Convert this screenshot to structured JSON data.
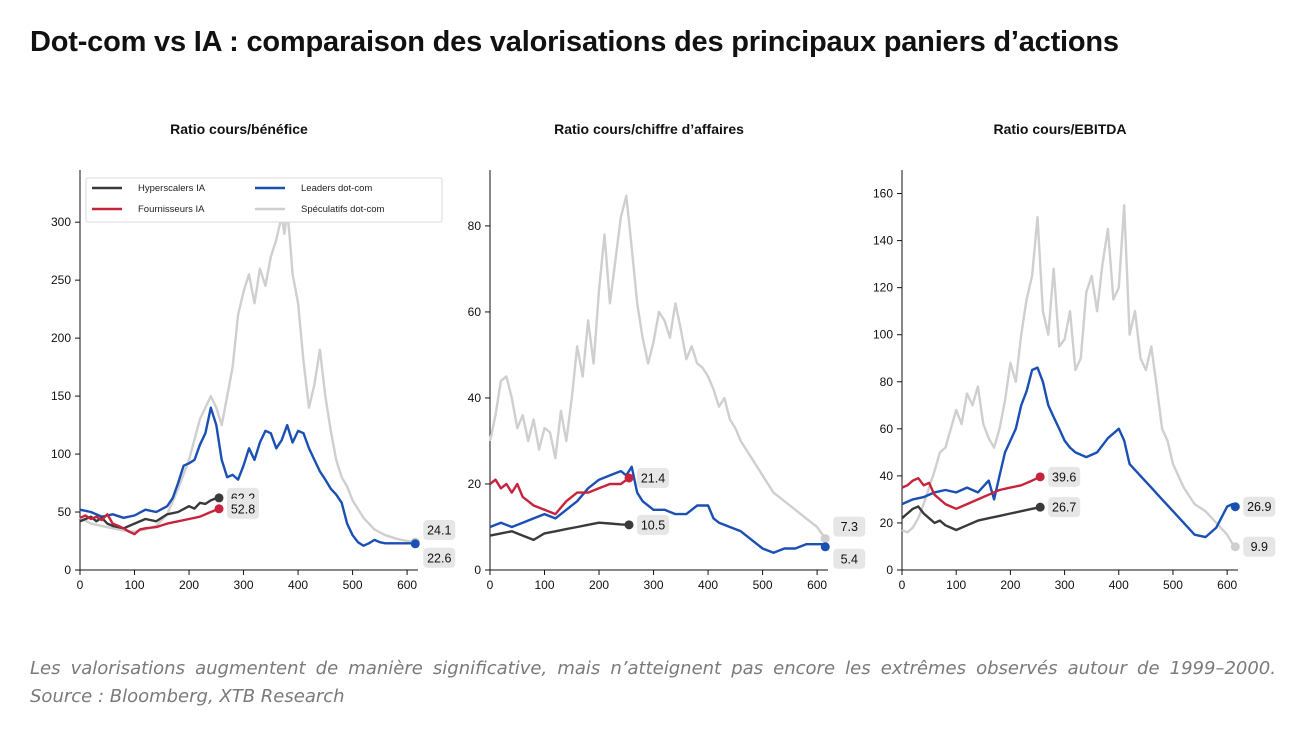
{
  "page": {
    "title": "Dot-com vs IA : comparaison des valorisations des principaux paniers d’actions",
    "caption": "Les valorisations augmentent de manière significative, mais n’atteignent pas encore les extrêmes observés autour de 1999–2000.",
    "source": "Source : Bloomberg, XTB Research"
  },
  "legend": [
    {
      "name": "Hyperscalers IA",
      "color": "#3a3a3c"
    },
    {
      "name": "Fournisseurs IA",
      "color": "#c8233c"
    },
    {
      "name": "Leaders dot-com",
      "color": "#1a4fb4"
    },
    {
      "name": "Spéculatifs dot-com",
      "color": "#cfcfcf"
    }
  ],
  "chart_data": [
    {
      "id": "pe",
      "type": "line",
      "title": "Ratio cours/bénéfice",
      "xlim": [
        0,
        620
      ],
      "ylim": [
        0,
        345
      ],
      "xticks": [
        0,
        100,
        200,
        300,
        400,
        500,
        600
      ],
      "yticks": [
        0,
        50,
        100,
        150,
        200,
        250,
        300
      ],
      "legend": true,
      "series": [
        {
          "name": "Spéculatifs dot-com",
          "color": "#cfcfcf",
          "x": [
            0,
            20,
            40,
            60,
            80,
            100,
            120,
            140,
            160,
            180,
            200,
            220,
            240,
            250,
            260,
            270,
            280,
            290,
            300,
            310,
            320,
            330,
            340,
            350,
            360,
            370,
            375,
            380,
            385,
            390,
            400,
            410,
            420,
            430,
            440,
            450,
            460,
            470,
            480,
            490,
            500,
            520,
            540,
            560,
            580,
            600,
            610,
            615
          ],
          "values": [
            45,
            40,
            38,
            36,
            34,
            33,
            35,
            38,
            48,
            70,
            95,
            130,
            150,
            140,
            125,
            150,
            175,
            220,
            240,
            255,
            230,
            260,
            245,
            270,
            285,
            305,
            290,
            310,
            285,
            255,
            230,
            180,
            140,
            160,
            190,
            150,
            120,
            95,
            80,
            72,
            60,
            45,
            35,
            30,
            27,
            25,
            24.5,
            24.1
          ],
          "end_label": "24.1"
        },
        {
          "name": "Leaders dot-com",
          "color": "#1a4fb4",
          "x": [
            0,
            20,
            40,
            60,
            80,
            100,
            120,
            140,
            160,
            170,
            180,
            190,
            200,
            210,
            220,
            230,
            240,
            250,
            260,
            270,
            280,
            290,
            300,
            310,
            320,
            330,
            340,
            350,
            360,
            370,
            380,
            390,
            400,
            410,
            420,
            430,
            440,
            450,
            460,
            470,
            480,
            490,
            500,
            510,
            520,
            530,
            540,
            550,
            560,
            580,
            600,
            610,
            615
          ],
          "values": [
            52,
            50,
            46,
            48,
            45,
            47,
            52,
            50,
            55,
            62,
            75,
            90,
            92,
            95,
            108,
            118,
            140,
            125,
            95,
            80,
            82,
            78,
            90,
            105,
            95,
            110,
            120,
            118,
            105,
            112,
            125,
            110,
            120,
            118,
            105,
            95,
            85,
            78,
            70,
            65,
            58,
            40,
            30,
            24,
            21,
            23,
            26,
            24,
            23,
            23,
            23,
            23,
            22.6
          ],
          "end_label": "22.6"
        },
        {
          "name": "Hyperscalers IA",
          "color": "#3a3a3c",
          "x": [
            0,
            10,
            20,
            30,
            40,
            50,
            60,
            80,
            100,
            120,
            140,
            160,
            180,
            200,
            210,
            220,
            230,
            240,
            250,
            255
          ],
          "values": [
            42,
            44,
            46,
            42,
            45,
            40,
            38,
            36,
            40,
            44,
            42,
            48,
            50,
            55,
            53,
            58,
            57,
            60,
            62,
            62.2
          ],
          "end_label": "62.2"
        },
        {
          "name": "Fournisseurs IA",
          "color": "#c8233c",
          "x": [
            0,
            10,
            20,
            30,
            40,
            50,
            60,
            70,
            80,
            90,
            100,
            110,
            120,
            140,
            160,
            180,
            200,
            220,
            240,
            255
          ],
          "values": [
            45,
            47,
            44,
            46,
            43,
            48,
            40,
            38,
            36,
            33,
            31,
            35,
            36,
            37,
            40,
            42,
            44,
            46,
            50,
            52.8
          ],
          "end_label": "52.8"
        }
      ]
    },
    {
      "id": "ps",
      "type": "line",
      "title": "Ratio cours/chiffre d’affaires",
      "xlim": [
        0,
        620
      ],
      "ylim": [
        0,
        93
      ],
      "xticks": [
        0,
        100,
        200,
        300,
        400,
        500,
        600
      ],
      "yticks": [
        0,
        20,
        40,
        60,
        80
      ],
      "legend": false,
      "series": [
        {
          "name": "Spéculatifs dot-com",
          "color": "#cfcfcf",
          "x": [
            0,
            10,
            20,
            30,
            40,
            50,
            60,
            70,
            80,
            90,
            100,
            110,
            120,
            130,
            140,
            150,
            160,
            170,
            180,
            190,
            200,
            210,
            220,
            230,
            240,
            250,
            260,
            270,
            280,
            290,
            300,
            310,
            320,
            330,
            340,
            350,
            360,
            370,
            380,
            390,
            400,
            410,
            420,
            430,
            440,
            450,
            460,
            470,
            480,
            490,
            500,
            510,
            520,
            540,
            560,
            580,
            600,
            615
          ],
          "values": [
            30,
            36,
            44,
            45,
            40,
            33,
            36,
            30,
            35,
            28,
            33,
            32,
            26,
            37,
            30,
            40,
            52,
            45,
            58,
            48,
            65,
            78,
            62,
            72,
            82,
            87,
            75,
            62,
            54,
            48,
            53,
            60,
            58,
            54,
            62,
            56,
            49,
            52,
            48,
            47,
            45,
            42,
            38,
            40,
            35,
            33,
            30,
            28,
            26,
            24,
            22,
            20,
            18,
            16,
            14,
            12,
            10,
            7.3
          ],
          "end_label": "7.3"
        },
        {
          "name": "Leaders dot-com",
          "color": "#1a4fb4",
          "x": [
            0,
            20,
            40,
            60,
            80,
            100,
            120,
            140,
            160,
            180,
            200,
            220,
            240,
            250,
            260,
            270,
            280,
            300,
            320,
            340,
            360,
            380,
            400,
            410,
            420,
            440,
            460,
            480,
            500,
            520,
            540,
            560,
            580,
            600,
            610,
            615
          ],
          "values": [
            10,
            11,
            10,
            11,
            12,
            13,
            12,
            14,
            16,
            19,
            21,
            22,
            23,
            22,
            24,
            18,
            16,
            14,
            14,
            13,
            13,
            15,
            15,
            12,
            11,
            10,
            9,
            7,
            5,
            4,
            5,
            5,
            6,
            6,
            6,
            5.4
          ],
          "end_label": "5.4"
        },
        {
          "name": "Hyperscalers IA",
          "color": "#3a3a3c",
          "x": [
            0,
            20,
            40,
            60,
            80,
            100,
            120,
            140,
            160,
            180,
            200,
            220,
            240,
            255
          ],
          "values": [
            8,
            8.5,
            9,
            8,
            7,
            8.5,
            9,
            9.5,
            10,
            10.5,
            11,
            10.8,
            10.6,
            10.5
          ],
          "end_label": "10.5"
        },
        {
          "name": "Fournisseurs IA",
          "color": "#c8233c",
          "x": [
            0,
            10,
            20,
            30,
            40,
            50,
            60,
            70,
            80,
            100,
            120,
            140,
            160,
            180,
            200,
            220,
            240,
            255
          ],
          "values": [
            20,
            21,
            19,
            20,
            18,
            20,
            17,
            16,
            15,
            14,
            13,
            16,
            18,
            18,
            19,
            20,
            20,
            21.4
          ],
          "end_label": "21.4"
        }
      ]
    },
    {
      "id": "ev",
      "type": "line",
      "title": "Ratio cours/EBITDA",
      "xlim": [
        0,
        620
      ],
      "ylim": [
        0,
        170
      ],
      "xticks": [
        0,
        100,
        200,
        300,
        400,
        500,
        600
      ],
      "yticks": [
        0,
        20,
        40,
        60,
        80,
        100,
        120,
        140,
        160
      ],
      "legend": false,
      "series": [
        {
          "name": "Spéculatifs dot-com",
          "color": "#cfcfcf",
          "x": [
            0,
            10,
            20,
            30,
            40,
            50,
            60,
            70,
            80,
            90,
            100,
            110,
            120,
            130,
            140,
            150,
            160,
            170,
            180,
            190,
            200,
            210,
            220,
            230,
            240,
            250,
            260,
            270,
            280,
            290,
            300,
            310,
            320,
            330,
            340,
            350,
            360,
            370,
            380,
            390,
            400,
            410,
            420,
            430,
            440,
            450,
            460,
            470,
            480,
            490,
            500,
            520,
            540,
            560,
            580,
            600,
            610,
            615
          ],
          "values": [
            17,
            16,
            18,
            22,
            28,
            35,
            42,
            50,
            52,
            60,
            68,
            62,
            75,
            70,
            78,
            62,
            56,
            52,
            60,
            72,
            88,
            80,
            100,
            115,
            125,
            150,
            110,
            100,
            128,
            95,
            98,
            110,
            85,
            90,
            118,
            125,
            110,
            130,
            145,
            115,
            120,
            155,
            100,
            110,
            90,
            85,
            95,
            78,
            60,
            55,
            45,
            35,
            28,
            25,
            20,
            15,
            11,
            9.9
          ],
          "end_label": "9.9"
        },
        {
          "name": "Leaders dot-com",
          "color": "#1a4fb4",
          "x": [
            0,
            20,
            40,
            60,
            80,
            100,
            120,
            140,
            160,
            170,
            180,
            190,
            200,
            210,
            220,
            230,
            240,
            250,
            260,
            270,
            280,
            290,
            300,
            310,
            320,
            340,
            360,
            380,
            400,
            410,
            420,
            440,
            460,
            480,
            500,
            520,
            540,
            560,
            580,
            600,
            610,
            615
          ],
          "values": [
            28,
            30,
            31,
            33,
            34,
            33,
            35,
            33,
            38,
            30,
            40,
            50,
            55,
            60,
            70,
            76,
            85,
            86,
            80,
            70,
            65,
            60,
            55,
            52,
            50,
            48,
            50,
            56,
            60,
            55,
            45,
            40,
            35,
            30,
            25,
            20,
            15,
            14,
            18,
            27,
            28,
            26.9
          ],
          "end_label": "26.9"
        },
        {
          "name": "Hyperscalers IA",
          "color": "#3a3a3c",
          "x": [
            0,
            10,
            20,
            30,
            40,
            50,
            60,
            70,
            80,
            90,
            100,
            120,
            140,
            160,
            180,
            200,
            220,
            240,
            255
          ],
          "values": [
            22,
            24,
            26,
            27,
            24,
            22,
            20,
            21,
            19,
            18,
            17,
            19,
            21,
            22,
            23,
            24,
            25,
            26,
            26.7
          ],
          "end_label": "26.7"
        },
        {
          "name": "Fournisseurs IA",
          "color": "#c8233c",
          "x": [
            0,
            10,
            20,
            30,
            40,
            50,
            60,
            70,
            80,
            90,
            100,
            120,
            140,
            160,
            180,
            200,
            220,
            240,
            255
          ],
          "values": [
            35,
            36,
            38,
            39,
            36,
            37,
            32,
            30,
            28,
            27,
            26,
            28,
            30,
            32,
            34,
            35,
            36,
            38,
            39.6
          ],
          "end_label": "39.6"
        }
      ]
    }
  ]
}
